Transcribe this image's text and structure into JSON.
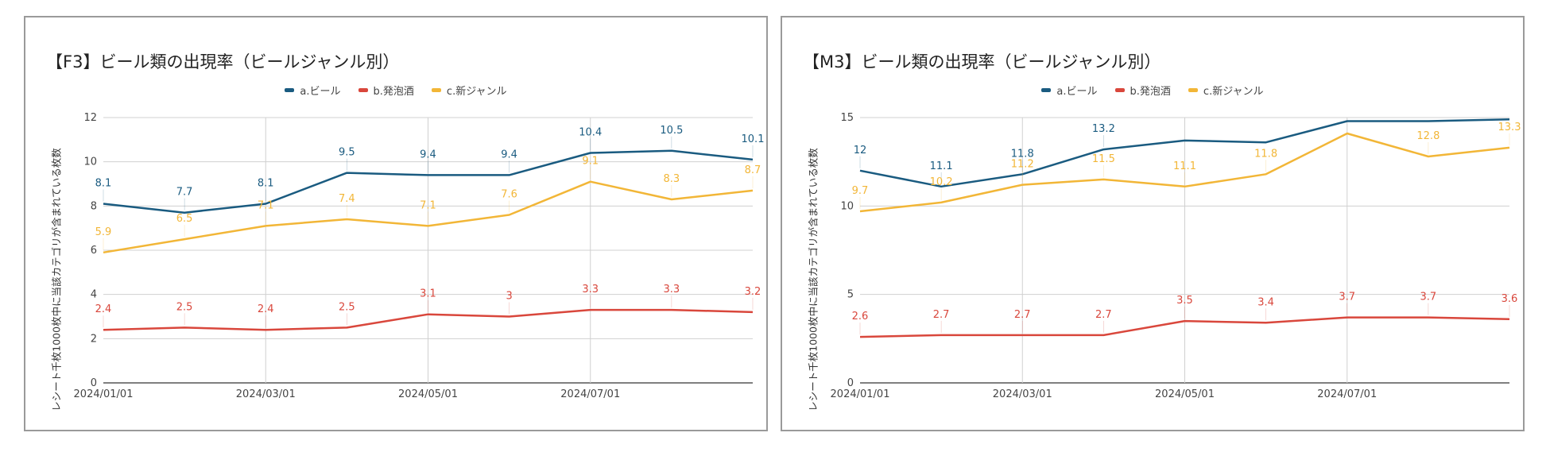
{
  "chart_data": [
    {
      "type": "line",
      "title": "【F3】ビール類の出現率（ビールジャンル別）",
      "ylabel": "レシート千枚1000枚中に当該カテゴリが含まれている枚数",
      "xlabel": "",
      "ylim": [
        0,
        12
      ],
      "yticks": [
        0,
        2,
        4,
        6,
        8,
        10,
        12
      ],
      "x": [
        "2024/01/01",
        "2024/02/01",
        "2024/03/01",
        "2024/04/01",
        "2024/05/01",
        "2024/06/01",
        "2024/07/01",
        "2024/08/01",
        "2024/09/01"
      ],
      "xtick_labels": [
        "2024/01/01",
        "",
        "2024/03/01",
        "",
        "2024/05/01",
        "",
        "2024/07/01",
        "",
        ""
      ],
      "legend": "top",
      "grid": true,
      "series": [
        {
          "name": "a.ビール",
          "color": "#1a5b80",
          "values": [
            8.1,
            7.7,
            8.1,
            9.5,
            9.4,
            9.4,
            10.4,
            10.5,
            10.1
          ]
        },
        {
          "name": "b.発泡酒",
          "color": "#d9473c",
          "values": [
            2.4,
            2.5,
            2.4,
            2.5,
            3.1,
            3.0,
            3.3,
            3.3,
            3.2
          ]
        },
        {
          "name": "c.新ジャンル",
          "color": "#f2b637",
          "values": [
            5.9,
            6.5,
            7.1,
            7.4,
            7.1,
            7.6,
            9.1,
            8.3,
            8.7
          ]
        }
      ]
    },
    {
      "type": "line",
      "title": "【M3】ビール類の出現率（ビールジャンル別）",
      "ylabel": "レシート千枚1000枚中に当該カテゴリが含まれている枚数",
      "xlabel": "",
      "ylim": [
        0,
        15
      ],
      "yticks": [
        0,
        5,
        10,
        15
      ],
      "x": [
        "2024/01/01",
        "2024/02/01",
        "2024/03/01",
        "2024/04/01",
        "2024/05/01",
        "2024/06/01",
        "2024/07/01",
        "2024/08/01",
        "2024/09/01"
      ],
      "xtick_labels": [
        "2024/01/01",
        "",
        "2024/03/01",
        "",
        "2024/05/01",
        "",
        "2024/07/01",
        "",
        ""
      ],
      "legend": "top",
      "grid": true,
      "series": [
        {
          "name": "a.ビール",
          "color": "#1a5b80",
          "values": [
            12.0,
            11.1,
            11.8,
            13.2,
            13.7,
            13.6,
            14.8,
            14.8,
            14.9
          ]
        },
        {
          "name": "b.発泡酒",
          "color": "#d9473c",
          "values": [
            2.6,
            2.7,
            2.7,
            2.7,
            3.5,
            3.4,
            3.7,
            3.7,
            3.6
          ]
        },
        {
          "name": "c.新ジャンル",
          "color": "#f2b637",
          "values": [
            9.7,
            10.2,
            11.2,
            11.5,
            11.1,
            11.8,
            14.1,
            12.8,
            13.3
          ]
        }
      ],
      "point_labels": [
        [
          "12",
          "11.1",
          "11.8",
          "13.2",
          "",
          "",
          "",
          "",
          ""
        ],
        [
          "2.6",
          "2.7",
          "2.7",
          "2.7",
          "3.5",
          "3.4",
          "3.7",
          "3.7",
          "3.6"
        ],
        [
          "9.7",
          "10.2",
          "11.2",
          "11.5",
          "11.1",
          "11.8",
          "",
          "12.8",
          "13.3"
        ]
      ]
    }
  ]
}
